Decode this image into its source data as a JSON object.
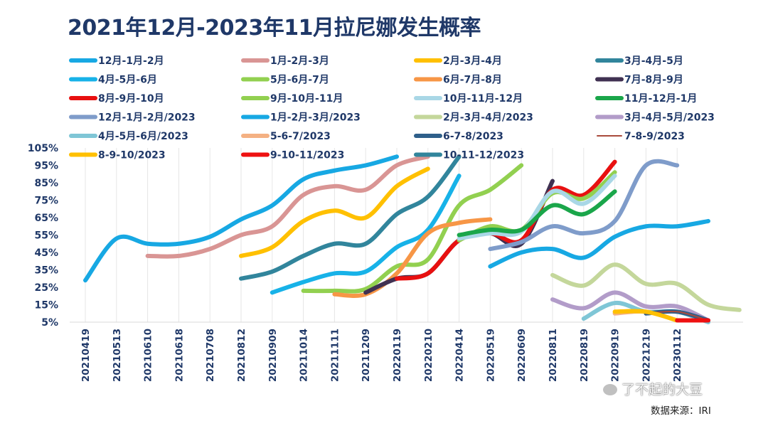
{
  "chart_data": {
    "type": "line",
    "title": "2021年12月-2023年11月拉尼娜发生概率",
    "source": "数据来源：IRI",
    "watermark": "了不起的大豆",
    "xlabel": "",
    "ylabel": "",
    "ylim": [
      5,
      105
    ],
    "grid": "vertical",
    "yticks": [
      "5%",
      "15%",
      "25%",
      "35%",
      "45%",
      "55%",
      "65%",
      "75%",
      "85%",
      "95%",
      "105%"
    ],
    "ytick_values": [
      5,
      15,
      25,
      35,
      45,
      55,
      65,
      75,
      85,
      95,
      105
    ],
    "x_slots": [
      "20210419",
      "",
      "20210513",
      "",
      "20210610",
      "",
      "20210618",
      "",
      "20210708",
      "",
      "20210812",
      "",
      "20210909",
      "",
      "20211014",
      "",
      "20211111",
      "",
      "20211209",
      "",
      "20220119",
      "",
      "20220210",
      "",
      "20220414",
      "",
      "20220519",
      "",
      "20220609",
      "",
      "20220811",
      "",
      "20220819",
      "",
      "20220919",
      "",
      "20221219",
      "",
      "20230112",
      "",
      "",
      ""
    ],
    "x_tick_labels": [
      "20210419",
      "20210513",
      "20210610",
      "20210618",
      "20210708",
      "20210812",
      "20210909",
      "20211014",
      "20211111",
      "20211209",
      "20220119",
      "20220210",
      "20220414",
      "20220519",
      "20220609",
      "20220811",
      "20220819",
      "20220919",
      "20221219",
      "20230112"
    ],
    "series": [
      {
        "name": "12月-1月-2月",
        "color": "#17a8e3",
        "start": 0,
        "values": [
          29,
          53,
          50,
          50,
          54,
          64,
          72,
          87,
          92,
          95,
          100
        ]
      },
      {
        "name": "1月-2月-3月",
        "color": "#d99594",
        "start": 2,
        "values": [
          43,
          43,
          47,
          55,
          60,
          78,
          83,
          81,
          95,
          100
        ]
      },
      {
        "name": "2月-3月-4月",
        "color": "#ffc000",
        "start": 5,
        "values": [
          43,
          48,
          63,
          69,
          65,
          83,
          93
        ]
      },
      {
        "name": "3月-4月-5月",
        "color": "#31859c",
        "start": 5,
        "values": [
          30,
          34,
          43,
          50,
          50,
          67,
          77,
          100
        ]
      },
      {
        "name": "4月-5月-6月",
        "color": "#17b2e8",
        "start": 6,
        "values": [
          22,
          28,
          33,
          34,
          48,
          58,
          89
        ]
      },
      {
        "name": "5月-6月-7月",
        "color": "#92d050",
        "start": 7,
        "values": [
          23,
          23,
          24,
          37,
          41,
          72,
          81,
          95
        ]
      },
      {
        "name": "6月-7月-8月",
        "color": "#f79646",
        "start": 8,
        "values": [
          21,
          21,
          33,
          56,
          62,
          64
        ]
      },
      {
        "name": "7月-8月-9月",
        "color": "#403152",
        "start": 9,
        "values": [
          22,
          30,
          33,
          52,
          56,
          50,
          86
        ]
      },
      {
        "name": "8月-9月-10月",
        "color": "#e81010",
        "start": 10,
        "values": [
          30,
          33,
          52,
          56,
          52,
          81,
          78,
          97
        ]
      },
      {
        "name": "9月-10月-11月",
        "color": "#92d050",
        "start": 12,
        "values": [
          52,
          60,
          58,
          79,
          76,
          91
        ]
      },
      {
        "name": "10月-11月-12月",
        "color": "#a9d7e6",
        "start": 12,
        "values": [
          53,
          56,
          57,
          80,
          73,
          89
        ]
      },
      {
        "name": "11月-12月-1月",
        "color": "#1aa64a",
        "start": 12,
        "values": [
          55,
          58,
          58,
          72,
          67,
          80
        ]
      },
      {
        "name": "12月-1月-2月/2023",
        "color": "#7f9cca",
        "start": 13,
        "values": [
          47,
          51,
          60,
          56,
          63,
          95,
          95
        ]
      },
      {
        "name": "1月-2月-3月/2023",
        "color": "#17a8e3",
        "start": 13,
        "values": [
          37,
          45,
          47,
          42,
          54,
          60,
          60,
          63
        ]
      },
      {
        "name": "2月-3月-4月/2023",
        "color": "#c4d79b",
        "start": 15,
        "values": [
          32,
          26,
          38,
          27,
          27,
          15,
          12
        ]
      },
      {
        "name": "3月-4月-5月/2023",
        "color": "#b29cc9",
        "start": 15,
        "values": [
          18,
          13,
          22,
          14,
          14,
          6
        ]
      },
      {
        "name": "4月-5月-6月/2023",
        "color": "#7fc6d6",
        "start": 16,
        "values": [
          7,
          16,
          11,
          11,
          5
        ]
      },
      {
        "name": "5-6-7/2023",
        "color": "#f4b183",
        "start": 17,
        "values": [
          10,
          11,
          6
        ]
      },
      {
        "name": "6-7-8/2023",
        "color": "#2e5f8a",
        "start": 18,
        "values": [
          10,
          11,
          6
        ]
      },
      {
        "name": "7-8-9/2023",
        "color": "#a94a3c",
        "start": 18,
        "values": [
          10,
          11,
          6
        ]
      },
      {
        "name": "8-9-10/2023",
        "color": "#ffc000",
        "start": 17,
        "values": [
          11,
          11,
          6
        ]
      },
      {
        "name": "9-10-11/2023",
        "color": "#ee1111",
        "start": 19,
        "values": [
          6,
          6
        ]
      },
      {
        "name": "10-11-12/2023",
        "color": "#31859c",
        "start": 0,
        "values": []
      }
    ]
  }
}
